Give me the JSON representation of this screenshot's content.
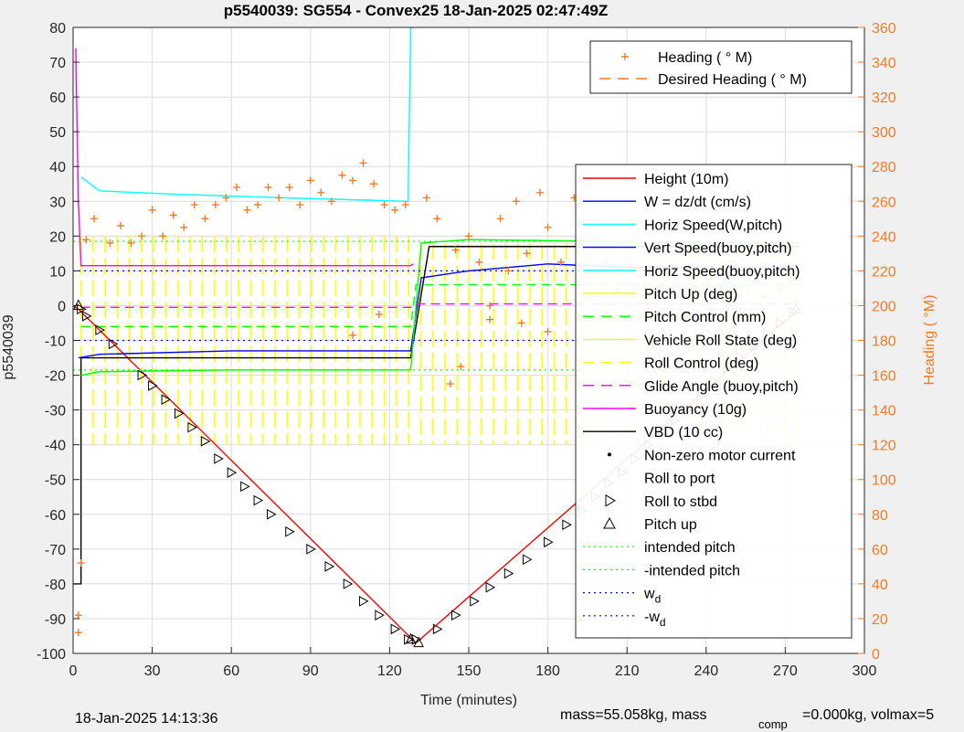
{
  "figure": {
    "title": "p5540039: SG554 - Convex25 18-Jan-2025 02:47:49Z",
    "footer_left": "18-Jan-2025 14:13:36",
    "footer_right_a": "mass=55.058kg, mass",
    "footer_right_sub": "comp",
    "footer_right_b": "=0.000kg, volmax=5"
  },
  "colors": {
    "height": "#ff0000",
    "w": "#0000ff",
    "horiz_w": "#00ffff",
    "vert_buoy": "#0000ff",
    "horiz_buoy": "#00ffff",
    "pitch_up": "#ffff00",
    "pitch_control": "#00ff00",
    "roll_state": "#ffff00",
    "roll_control": "#ffff00",
    "glide": "#ff00ff",
    "buoyancy": "#ff00ff",
    "vbd": "#000000",
    "heading": "#f37b26",
    "intended": "#00ff00",
    "wd": "#0000ff",
    "axis_right": "#f37b26"
  },
  "chart_data": {
    "type": "line",
    "title": "p5540039: SG554 - Convex25 18-Jan-2025 02:47:49Z",
    "xlabel": "Time (minutes)",
    "ylabel": "p5540039",
    "ylabel_right": "Heading (  °M)",
    "xlim": [
      0,
      300
    ],
    "ylim": [
      -100,
      80
    ],
    "ylim_right": [
      0,
      360
    ],
    "x_ticks": [
      "0",
      "30",
      "60",
      "90",
      "120",
      "150",
      "180",
      "210",
      "240",
      "270",
      "300"
    ],
    "y_ticks": [
      "80",
      "70",
      "60",
      "50",
      "40",
      "30",
      "20",
      "10",
      "0",
      "-10",
      "-20",
      "-30",
      "-40",
      "-50",
      "-60",
      "-70",
      "-80",
      "-90",
      "-100"
    ],
    "y_ticks_right": [
      "360",
      "340",
      "320",
      "300",
      "280",
      "260",
      "240",
      "220",
      "200",
      "180",
      "160",
      "140",
      "120",
      "100",
      "80",
      "60",
      "40",
      "20",
      "0"
    ],
    "grid": true,
    "legend_right_axis": [
      {
        "label": "Heading (  ° M)",
        "marker": "+"
      },
      {
        "label": "Desired Heading (    ° M)",
        "marker": "dash"
      }
    ],
    "legend_main": [
      {
        "label": "Height (10m)",
        "style": "solid"
      },
      {
        "label": "W = dz/dt (cm/s)",
        "style": "solid"
      },
      {
        "label": "Horiz Speed(W,pitch)",
        "style": "solid"
      },
      {
        "label": "Vert Speed(buoy,pitch)",
        "style": "solid"
      },
      {
        "label": "Horiz Speed(buoy,pitch)",
        "style": "solid"
      },
      {
        "label": "Pitch Up (deg)",
        "style": "solid"
      },
      {
        "label": "Pitch Control (mm)",
        "style": "dash"
      },
      {
        "label": "Vehicle Roll State (deg)",
        "style": "solid"
      },
      {
        "label": "Roll Control (deg)",
        "style": "dash"
      },
      {
        "label": "Glide Angle (buoy,pitch)",
        "style": "dash"
      },
      {
        "label": "Buoyancy (10g)",
        "style": "solid"
      },
      {
        "label": "VBD (10 cc)",
        "style": "solid"
      },
      {
        "label": "Non-zero motor current",
        "style": "dot"
      },
      {
        "label": "Roll to port",
        "style": "none"
      },
      {
        "label": "Roll to stbd",
        "style": "tri-right"
      },
      {
        "label": "Pitch up",
        "style": "tri-up"
      },
      {
        "label": "intended pitch",
        "style": "dotted"
      },
      {
        "label": "-intended pitch",
        "style": "dotted"
      },
      {
        "label": "w",
        "sub": "d",
        "style": "dotted"
      },
      {
        "label": "-w",
        "sub": "d",
        "style": "dotted"
      }
    ],
    "series": [
      {
        "name": "Height (10m)",
        "x": [
          0,
          2,
          130,
          275
        ],
        "y": [
          0,
          -1,
          -97,
          -1
        ]
      },
      {
        "name": "VBD (10 cc)",
        "x": [
          0,
          3,
          3,
          128,
          135,
          275
        ],
        "y": [
          -80,
          -80,
          -15,
          -15,
          17,
          17
        ]
      },
      {
        "name": "Buoyancy (10g)",
        "x": [
          1,
          2,
          3,
          128,
          129
        ],
        "y": [
          74,
          30,
          11.5,
          11.5,
          12
        ]
      },
      {
        "name": "W = dz/dt (cm/s)",
        "x": [
          2,
          10,
          60,
          128,
          132,
          150,
          180,
          210,
          275
        ],
        "y": [
          -15,
          -14,
          -13,
          -13,
          8,
          10,
          12,
          11,
          11
        ]
      },
      {
        "name": "Horiz Speed(W,pitch)",
        "x": [
          3,
          10,
          40,
          80,
          127,
          128
        ],
        "y": [
          37,
          33,
          32,
          31,
          30,
          80
        ]
      },
      {
        "name": "Pitch Control (mm)",
        "x": [
          3,
          10,
          60,
          128,
          132,
          150,
          200,
          275
        ],
        "y": [
          -20,
          -19,
          -18.5,
          -18.5,
          18,
          19,
          18.5,
          18
        ]
      },
      {
        "name": "Glide Angle (buoy,pitch)",
        "x": [
          3,
          128,
          130,
          275
        ],
        "y": [
          -0.5,
          -0.5,
          0.5,
          0.5
        ]
      },
      {
        "name": "Pitch Up (deg)",
        "x": [
          3,
          128,
          130,
          275
        ],
        "y": [
          -6,
          -6,
          6,
          6
        ]
      },
      {
        "name": "intended pitch",
        "x": [
          0,
          275
        ],
        "y": [
          18.5,
          18.5
        ]
      },
      {
        "name": "-intended pitch",
        "x": [
          0,
          275
        ],
        "y": [
          -18.5,
          -18.5
        ]
      },
      {
        "name": "w",
        "x": [
          0,
          275
        ],
        "y": [
          10,
          10
        ]
      },
      {
        "name": "-w",
        "x": [
          0,
          275
        ],
        "y": [
          -10,
          -10
        ]
      }
    ],
    "heading_samples_deg": [
      {
        "x": 2,
        "y": 12
      },
      {
        "x": 2,
        "y": 22
      },
      {
        "x": 3,
        "y": 52
      },
      {
        "x": 5,
        "y": 238
      },
      {
        "x": 8,
        "y": 250
      },
      {
        "x": 14,
        "y": 236
      },
      {
        "x": 18,
        "y": 246
      },
      {
        "x": 22,
        "y": 236
      },
      {
        "x": 26,
        "y": 240
      },
      {
        "x": 30,
        "y": 255
      },
      {
        "x": 34,
        "y": 240
      },
      {
        "x": 38,
        "y": 252
      },
      {
        "x": 42,
        "y": 245
      },
      {
        "x": 46,
        "y": 258
      },
      {
        "x": 50,
        "y": 250
      },
      {
        "x": 54,
        "y": 258
      },
      {
        "x": 58,
        "y": 262
      },
      {
        "x": 62,
        "y": 268
      },
      {
        "x": 66,
        "y": 255
      },
      {
        "x": 70,
        "y": 258
      },
      {
        "x": 74,
        "y": 268
      },
      {
        "x": 78,
        "y": 262
      },
      {
        "x": 82,
        "y": 268
      },
      {
        "x": 86,
        "y": 258
      },
      {
        "x": 90,
        "y": 272
      },
      {
        "x": 94,
        "y": 265
      },
      {
        "x": 98,
        "y": 260
      },
      {
        "x": 102,
        "y": 275
      },
      {
        "x": 106,
        "y": 272
      },
      {
        "x": 110,
        "y": 282
      },
      {
        "x": 114,
        "y": 270
      },
      {
        "x": 118,
        "y": 258
      },
      {
        "x": 122,
        "y": 255
      },
      {
        "x": 126,
        "y": 258
      },
      {
        "x": 106,
        "y": 183
      },
      {
        "x": 116,
        "y": 195
      },
      {
        "x": 134,
        "y": 262
      },
      {
        "x": 138,
        "y": 250
      },
      {
        "x": 145,
        "y": 232
      },
      {
        "x": 150,
        "y": 240
      },
      {
        "x": 154,
        "y": 225
      },
      {
        "x": 158,
        "y": 200
      },
      {
        "x": 162,
        "y": 250
      },
      {
        "x": 165,
        "y": 220
      },
      {
        "x": 168,
        "y": 260
      },
      {
        "x": 172,
        "y": 230
      },
      {
        "x": 177,
        "y": 265
      },
      {
        "x": 180,
        "y": 245
      },
      {
        "x": 185,
        "y": 225
      },
      {
        "x": 190,
        "y": 262
      },
      {
        "x": 196,
        "y": 270
      },
      {
        "x": 198,
        "y": 240
      },
      {
        "x": 202,
        "y": 225
      },
      {
        "x": 206,
        "y": 210
      },
      {
        "x": 210,
        "y": 195
      },
      {
        "x": 214,
        "y": 210
      },
      {
        "x": 218,
        "y": 200
      },
      {
        "x": 225,
        "y": 215
      },
      {
        "x": 232,
        "y": 205
      },
      {
        "x": 238,
        "y": 220
      },
      {
        "x": 244,
        "y": 210
      },
      {
        "x": 250,
        "y": 225
      },
      {
        "x": 256,
        "y": 215
      },
      {
        "x": 262,
        "y": 205
      },
      {
        "x": 268,
        "y": 210
      },
      {
        "x": 272,
        "y": 220
      },
      {
        "x": 170,
        "y": 190
      },
      {
        "x": 180,
        "y": 185
      },
      {
        "x": 158,
        "y": 192
      },
      {
        "x": 143,
        "y": 155
      },
      {
        "x": 147,
        "y": 165
      }
    ],
    "markers_roll_to_stbd": [
      [
        3,
        -1
      ],
      [
        5,
        -3
      ],
      [
        10,
        -7
      ],
      [
        15,
        -11
      ],
      [
        26,
        -20
      ],
      [
        30,
        -23
      ],
      [
        35,
        -27
      ],
      [
        40,
        -31
      ],
      [
        45,
        -35
      ],
      [
        50,
        -39
      ],
      [
        55,
        -44
      ],
      [
        60,
        -48
      ],
      [
        65,
        -52
      ],
      [
        70,
        -56
      ],
      [
        75,
        -60
      ],
      [
        82,
        -65
      ],
      [
        90,
        -70
      ],
      [
        97,
        -75
      ],
      [
        104,
        -80
      ],
      [
        110,
        -85
      ],
      [
        116,
        -89
      ],
      [
        122,
        -93
      ],
      [
        127,
        -96
      ],
      [
        130,
        -96
      ],
      [
        138,
        -93
      ],
      [
        145,
        -89
      ],
      [
        152,
        -85
      ],
      [
        158,
        -81
      ],
      [
        165,
        -77
      ],
      [
        172,
        -73
      ],
      [
        180,
        -68
      ],
      [
        187,
        -63
      ],
      [
        193,
        -59
      ],
      [
        198,
        -55
      ],
      [
        203,
        -51
      ],
      [
        208,
        -48
      ],
      [
        213,
        -44
      ],
      [
        218,
        -40
      ],
      [
        223,
        -37
      ],
      [
        228,
        -33
      ],
      [
        233,
        -30
      ],
      [
        238,
        -26
      ],
      [
        243,
        -22
      ],
      [
        248,
        -18
      ],
      [
        253,
        -15
      ],
      [
        258,
        -12
      ],
      [
        263,
        -8
      ],
      [
        268,
        -5
      ],
      [
        273,
        -2
      ]
    ],
    "markers_pitch_up": [
      [
        2,
        0
      ],
      [
        128,
        -96
      ],
      [
        131,
        -97
      ],
      [
        274,
        -1
      ]
    ]
  }
}
